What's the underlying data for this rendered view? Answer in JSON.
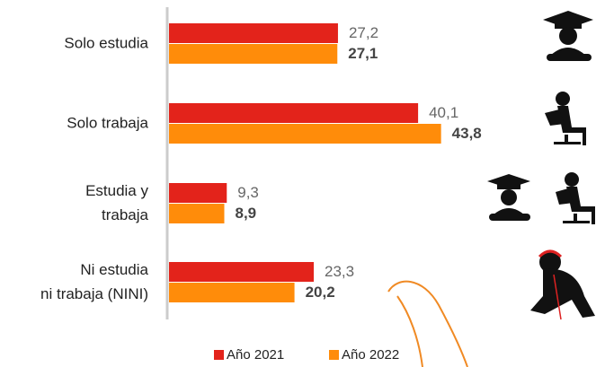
{
  "chart_data": {
    "type": "bar",
    "orientation": "horizontal",
    "categories": [
      [
        "Solo estudia"
      ],
      [
        "Solo trabaja"
      ],
      [
        "Estudia y",
        "trabaja"
      ],
      [
        "Ni estudia",
        "ni trabaja (NINI)"
      ]
    ],
    "series": [
      {
        "name": "Año 2021",
        "color": "#e3231b",
        "values": [
          27.2,
          40.1,
          9.3,
          23.3
        ],
        "value_labels": [
          "27,2",
          "40,1",
          "9,3",
          "23,3"
        ]
      },
      {
        "name": "Año 2022",
        "color": "#ff8c0a",
        "values": [
          27.1,
          43.8,
          8.9,
          20.2
        ],
        "value_labels": [
          "27,1",
          "43,8",
          "8,9",
          "20,2"
        ]
      }
    ],
    "legend": "bottom"
  }
}
